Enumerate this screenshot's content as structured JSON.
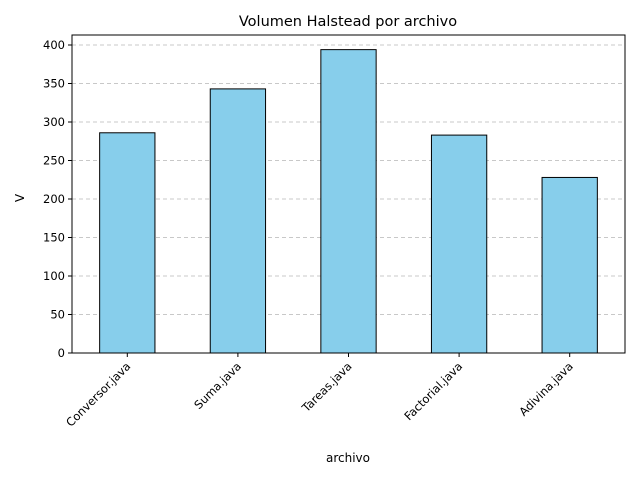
{
  "chart_data": {
    "type": "bar",
    "title": "Volumen Halstead por archivo",
    "xlabel": "archivo",
    "ylabel": "V",
    "categories": [
      "Conversor.java",
      "Suma.java",
      "Tareas.java",
      "Factorial.java",
      "Adivina.java"
    ],
    "values": [
      286,
      343,
      394,
      283,
      228
    ],
    "ylim": [
      0,
      413
    ],
    "yticks": [
      0,
      50,
      100,
      150,
      200,
      250,
      300,
      350,
      400
    ],
    "grid": "y-dashed",
    "legend": "none",
    "colors": {
      "bar_fill": "#87CEEB",
      "bar_edge": "#000000",
      "grid": "#c8c8c8",
      "axis": "#000000"
    }
  }
}
